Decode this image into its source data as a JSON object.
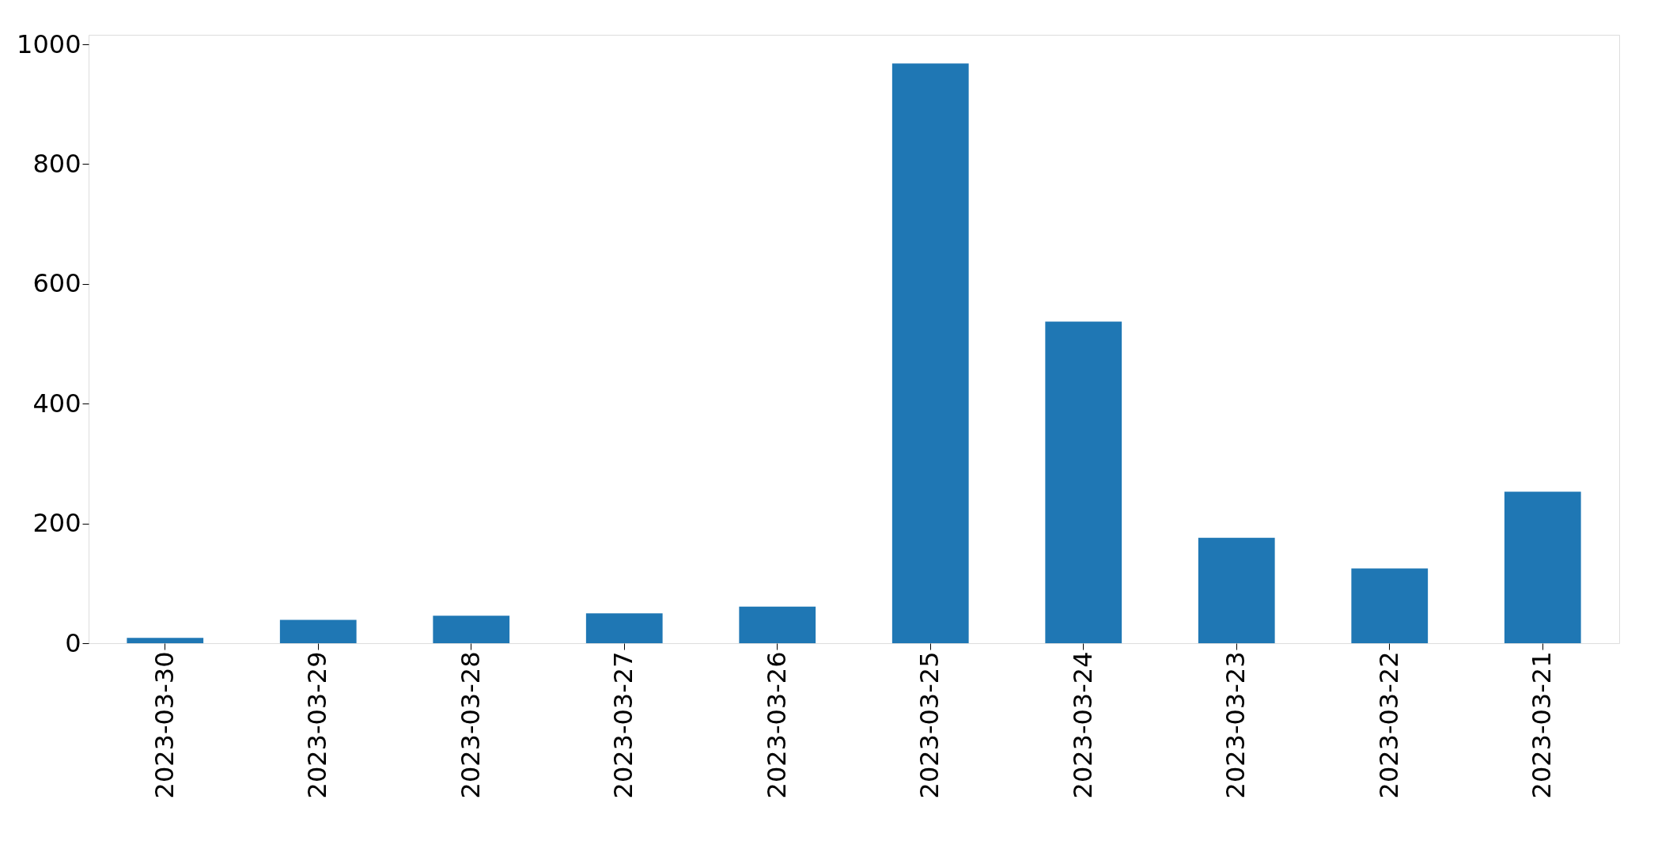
{
  "chart_data": {
    "type": "bar",
    "categories": [
      "2023-03-30",
      "2023-03-29",
      "2023-03-28",
      "2023-03-27",
      "2023-03-26",
      "2023-03-25",
      "2023-03-24",
      "2023-03-23",
      "2023-03-22",
      "2023-03-21"
    ],
    "values": [
      9,
      39,
      46,
      50,
      61,
      968,
      537,
      176,
      125,
      253
    ],
    "color": "#1f77b4",
    "ylim": [
      0,
      1016
    ],
    "yticks": [
      0,
      200,
      400,
      600,
      800,
      1000
    ],
    "grid": false
  }
}
